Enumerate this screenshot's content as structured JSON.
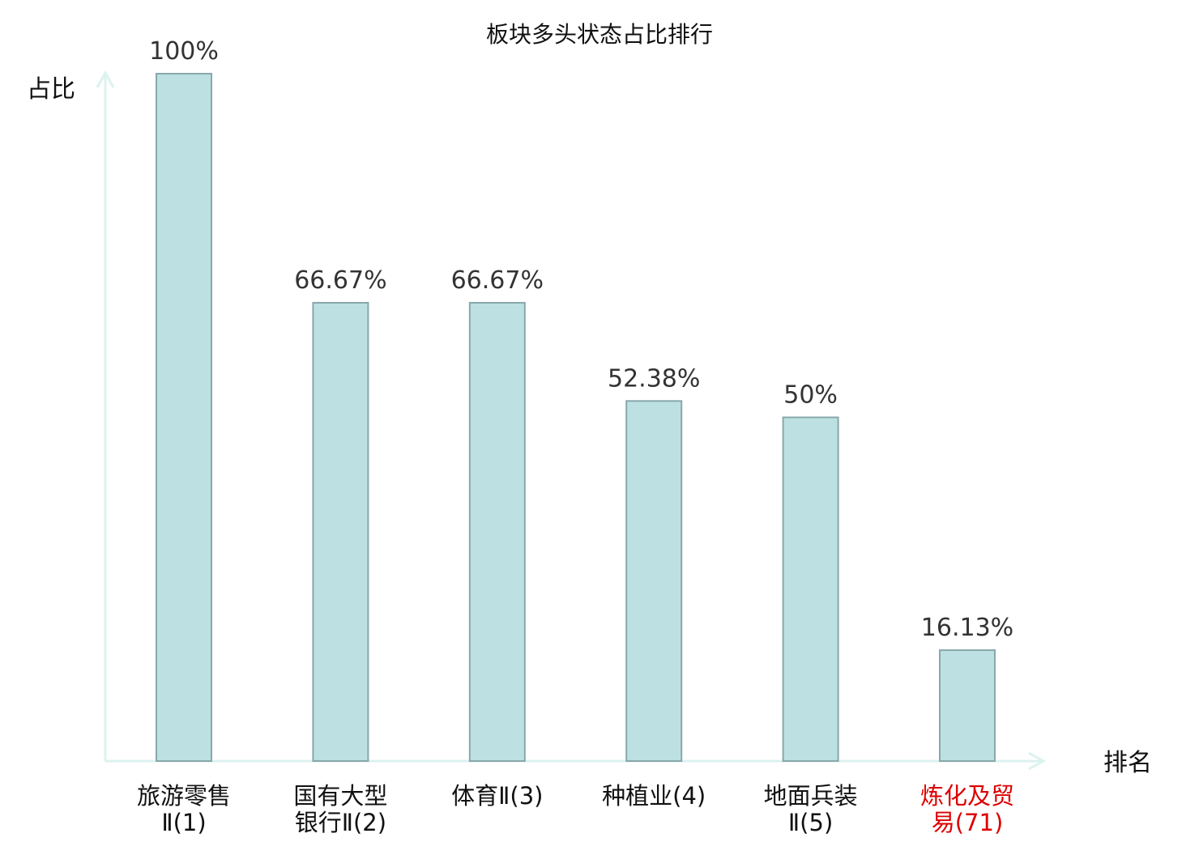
{
  "chart_data": {
    "type": "bar",
    "title": "板块多头状态占比排行",
    "xlabel": "排名",
    "ylabel": "占比",
    "ylim": [
      0,
      100
    ],
    "grid": false,
    "categories": [
      {
        "lines": [
          "旅游零售",
          "Ⅱ(1)"
        ],
        "highlight": false
      },
      {
        "lines": [
          "国有大型",
          "银行Ⅱ(2)"
        ],
        "highlight": false
      },
      {
        "lines": [
          "体育Ⅱ(3)"
        ],
        "highlight": false
      },
      {
        "lines": [
          "种植业(4)"
        ],
        "highlight": false
      },
      {
        "lines": [
          "地面兵装",
          "Ⅱ(5)"
        ],
        "highlight": false
      },
      {
        "lines": [
          "炼化及贸",
          "易(71)"
        ],
        "highlight": true
      }
    ],
    "values": [
      100,
      66.67,
      66.67,
      52.38,
      50,
      16.13
    ],
    "value_labels": [
      "100%",
      "66.67%",
      "66.67%",
      "52.38%",
      "50%",
      "16.13%"
    ]
  },
  "colors": {
    "bar_fill": "#bde0e3",
    "bar_stroke": "#88a8ab",
    "axis": "#dcf2ef",
    "highlight_text": "#dd0000",
    "normal_text": "#111111",
    "value_text": "#333333"
  }
}
